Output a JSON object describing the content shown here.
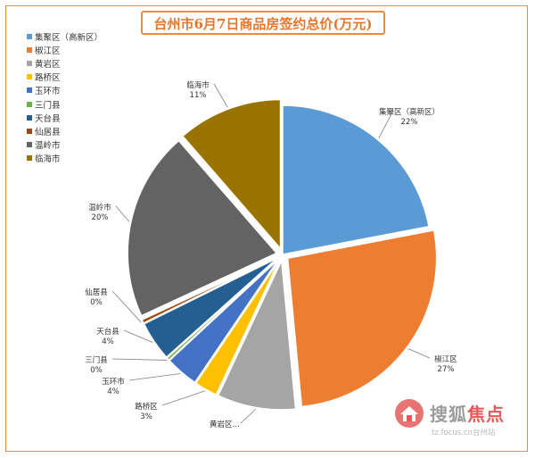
{
  "colors": {
    "frame": "#ef8a3a",
    "title": "#e8762d",
    "watermark_gray": "#9b9b9b",
    "watermark_red": "#e35a5a"
  },
  "chart_data": {
    "type": "pie",
    "title": "台州市6月7日商品房签约总价(万元)",
    "legend_position": "top-left",
    "slices": [
      {
        "name": "集聚区（高新区）",
        "label": "集聚区（高新区）",
        "value_label": "22%",
        "value": 22.0,
        "color": "#5b9bd5"
      },
      {
        "name": "椒江区",
        "label": "椒江区",
        "value_label": "27%",
        "value": 26.5,
        "color": "#ed7d31"
      },
      {
        "name": "黄岩区",
        "label": "黄岩区…",
        "value_label": "",
        "value": 8.5,
        "color": "#a5a5a5"
      },
      {
        "name": "路桥区",
        "label": "路桥区",
        "value_label": "3%",
        "value": 2.5,
        "color": "#ffc000"
      },
      {
        "name": "玉环市",
        "label": "玉环市",
        "value_label": "4%",
        "value": 3.6,
        "color": "#4472c4"
      },
      {
        "name": "三门县",
        "label": "三门县",
        "value_label": "0%",
        "value": 0.3,
        "color": "#70ad47"
      },
      {
        "name": "天台县",
        "label": "天台县",
        "value_label": "4%",
        "value": 4.3,
        "color": "#255e91"
      },
      {
        "name": "仙居县",
        "label": "仙居县",
        "value_label": "0%",
        "value": 0.4,
        "color": "#9e480e"
      },
      {
        "name": "温岭市",
        "label": "温岭市",
        "value_label": "20%",
        "value": 20.5,
        "color": "#636363"
      },
      {
        "name": "临海市",
        "label": "临海市",
        "value_label": "11%",
        "value": 11.4,
        "color": "#997300"
      }
    ]
  },
  "watermark": {
    "brand_main": "搜狐",
    "brand_accent": "焦点",
    "url": "tz.focus.cn台州站"
  }
}
